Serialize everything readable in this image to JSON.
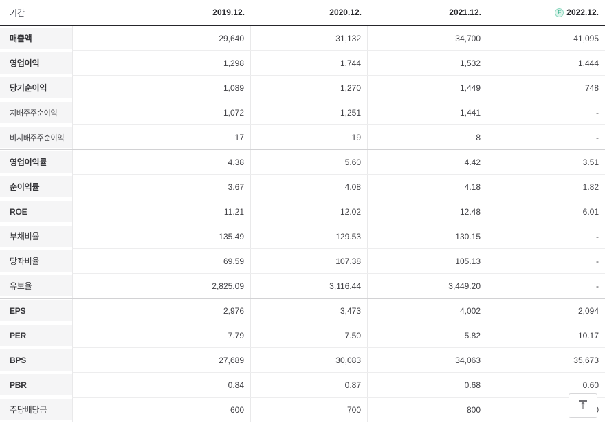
{
  "table": {
    "period_label": "기간",
    "columns": [
      {
        "label": "2019.12."
      },
      {
        "label": "2020.12."
      },
      {
        "label": "2021.12."
      },
      {
        "label": "2022.12.",
        "estimate": true
      }
    ],
    "estimate_badge": "E",
    "rows": [
      {
        "label": "매출액",
        "style": "bold",
        "sep_after": false,
        "values": [
          "29,640",
          "31,132",
          "34,700",
          "41,095"
        ]
      },
      {
        "label": "영업이익",
        "style": "bold",
        "sep_after": false,
        "values": [
          "1,298",
          "1,744",
          "1,532",
          "1,444"
        ]
      },
      {
        "label": "당기순이익",
        "style": "bold",
        "sep_after": false,
        "values": [
          "1,089",
          "1,270",
          "1,449",
          "748"
        ]
      },
      {
        "label": "지배주주순이익",
        "style": "sub",
        "sep_after": false,
        "values": [
          "1,072",
          "1,251",
          "1,441",
          "-"
        ]
      },
      {
        "label": "비지배주주순이익",
        "style": "sub",
        "sep_after": true,
        "values": [
          "17",
          "19",
          "8",
          "-"
        ]
      },
      {
        "label": "영업이익률",
        "style": "bold",
        "sep_after": false,
        "values": [
          "4.38",
          "5.60",
          "4.42",
          "3.51"
        ]
      },
      {
        "label": "순이익률",
        "style": "bold",
        "sep_after": false,
        "values": [
          "3.67",
          "4.08",
          "4.18",
          "1.82"
        ]
      },
      {
        "label": "ROE",
        "style": "bold",
        "sep_after": false,
        "values": [
          "11.21",
          "12.02",
          "12.48",
          "6.01"
        ]
      },
      {
        "label": "부채비율",
        "style": "normal",
        "sep_after": false,
        "values": [
          "135.49",
          "129.53",
          "130.15",
          "-"
        ]
      },
      {
        "label": "당좌비율",
        "style": "normal",
        "sep_after": false,
        "values": [
          "69.59",
          "107.38",
          "105.13",
          "-"
        ]
      },
      {
        "label": "유보율",
        "style": "normal",
        "sep_after": true,
        "values": [
          "2,825.09",
          "3,116.44",
          "3,449.20",
          "-"
        ]
      },
      {
        "label": "EPS",
        "style": "bold",
        "sep_after": false,
        "values": [
          "2,976",
          "3,473",
          "4,002",
          "2,094"
        ]
      },
      {
        "label": "PER",
        "style": "bold",
        "sep_after": false,
        "values": [
          "7.79",
          "7.50",
          "5.82",
          "10.17"
        ]
      },
      {
        "label": "BPS",
        "style": "bold",
        "sep_after": false,
        "values": [
          "27,689",
          "30,083",
          "34,063",
          "35,673"
        ]
      },
      {
        "label": "PBR",
        "style": "bold",
        "sep_after": false,
        "values": [
          "0.84",
          "0.87",
          "0.68",
          "0.60"
        ]
      },
      {
        "label": "주당배당금",
        "style": "normal",
        "sep_after": false,
        "values": [
          "600",
          "700",
          "800",
          "0"
        ]
      }
    ]
  },
  "scroll_top_button": {
    "icon": "arrow-up-to-bar",
    "glyph": "↑"
  },
  "colors": {
    "estimate_accent": "#2fae8b",
    "header_rule": "#26262b",
    "row_label_bg": "#f5f5f6"
  }
}
